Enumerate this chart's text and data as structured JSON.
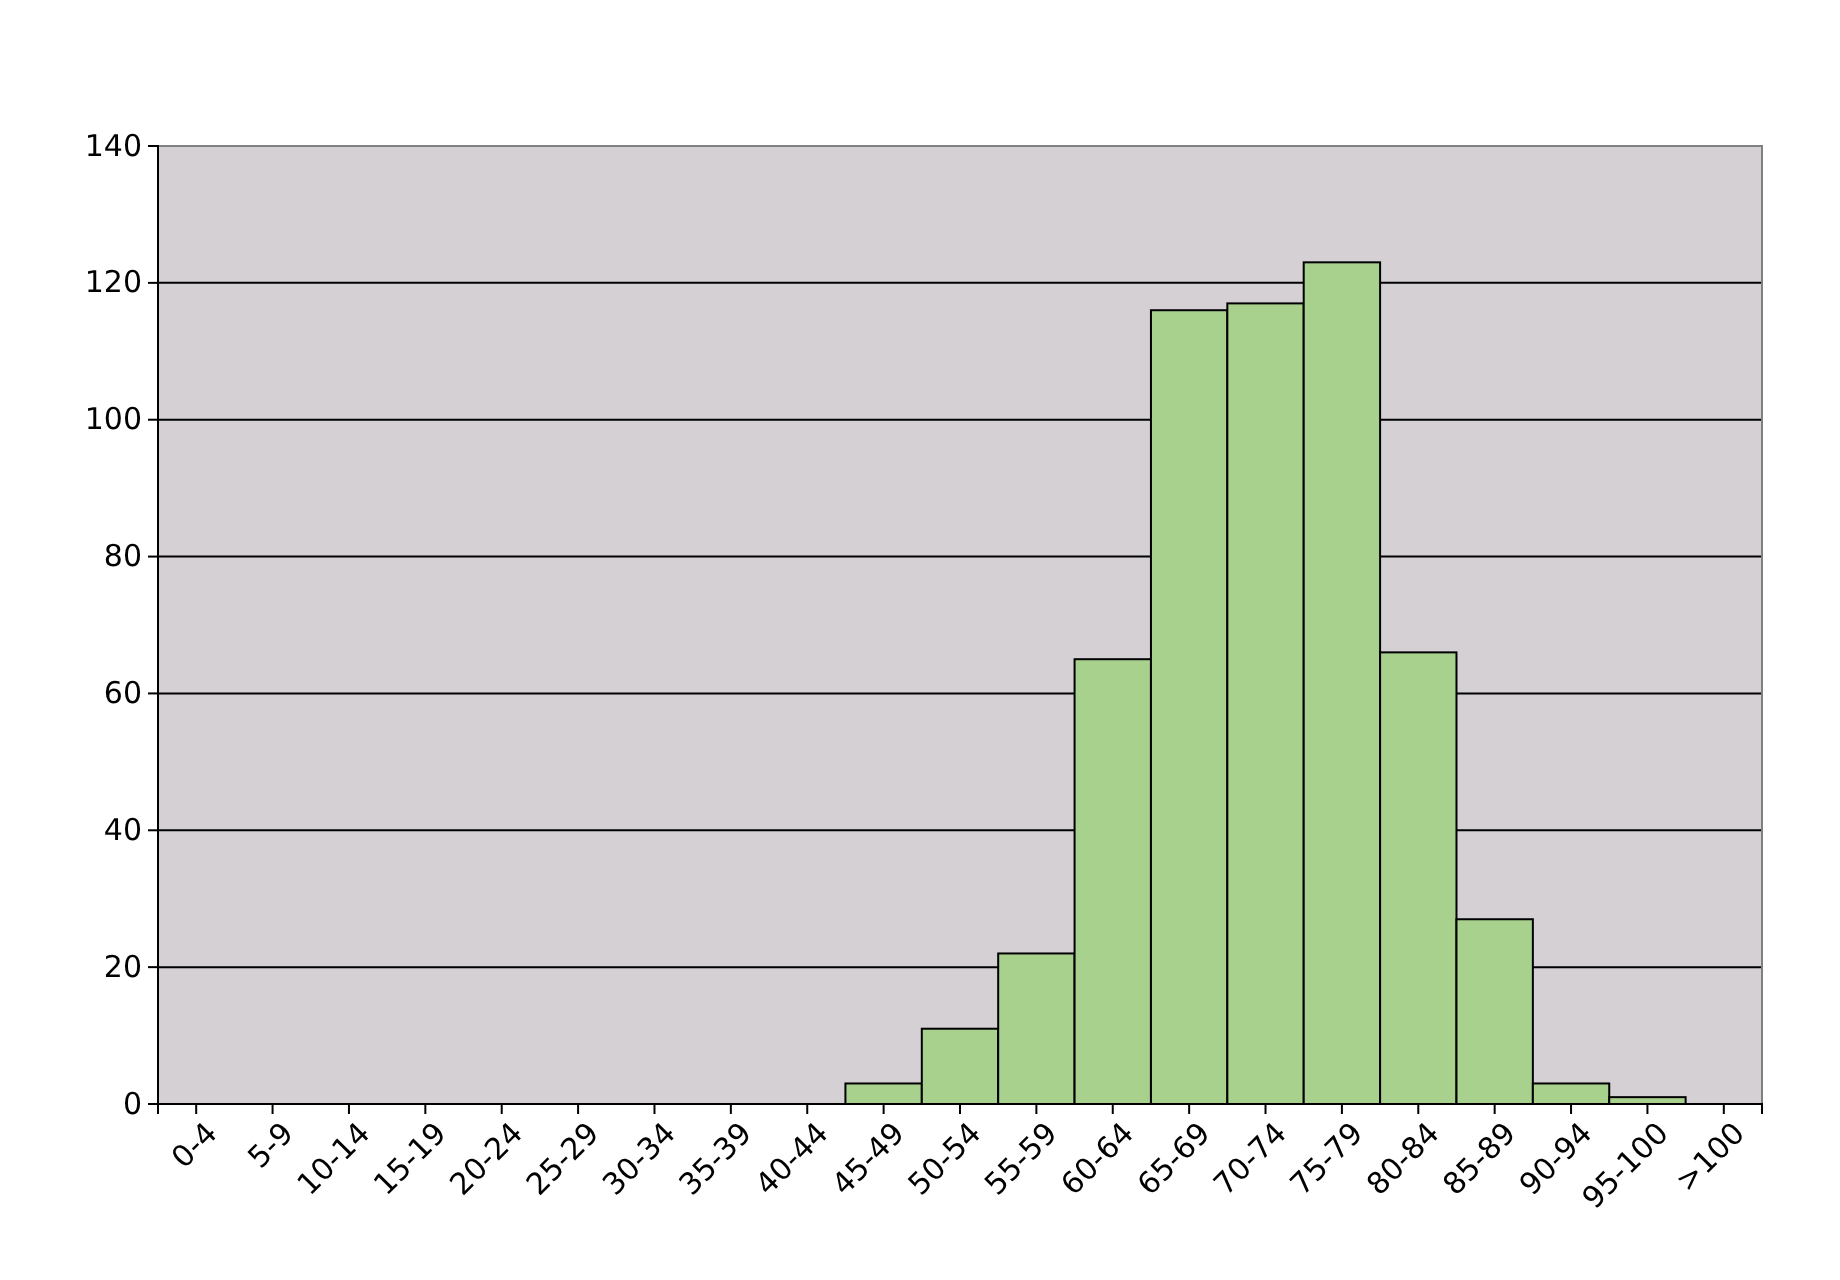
{
  "chart_data": {
    "type": "bar",
    "categories": [
      "0-4",
      "5-9",
      "10-14",
      "15-19",
      "20-24",
      "25-29",
      "30-34",
      "35-39",
      "40-44",
      "45-49",
      "50-54",
      "55-59",
      "60-64",
      "65-69",
      "70-74",
      "75-79",
      "80-84",
      "85-89",
      "90-94",
      "95-100",
      ">100"
    ],
    "values": [
      0,
      0,
      0,
      0,
      0,
      0,
      0,
      0,
      0,
      3,
      11,
      22,
      65,
      116,
      117,
      123,
      66,
      27,
      3,
      1,
      0
    ],
    "color": "#a9d18e",
    "ylim": [
      0,
      140
    ],
    "yticks": [
      0,
      20,
      40,
      60,
      80,
      100,
      120,
      140
    ],
    "grid": "y"
  }
}
